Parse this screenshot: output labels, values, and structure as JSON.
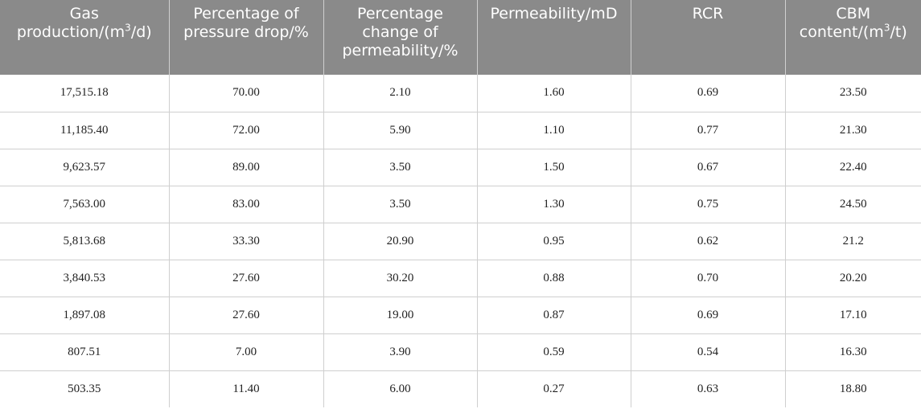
{
  "table": {
    "headers": {
      "gas_production": {
        "line1": "Gas",
        "line2_pre": "production/(m",
        "sup": "3",
        "line2_post": "/d)"
      },
      "pressure_drop": {
        "line1": "Percentage of",
        "line2": "pressure drop/%"
      },
      "permeability_change": {
        "line1": "Percentage",
        "line2": "change of",
        "line3": "permeability/%"
      },
      "permeability": {
        "line1": "Permeability/mD"
      },
      "rcr": {
        "line1": "RCR"
      },
      "cbm_content": {
        "line1": "CBM",
        "line2_pre": "content/(m",
        "sup": "3",
        "line2_post": "/t)"
      }
    },
    "rows": [
      [
        "17,515.18",
        "70.00",
        "2.10",
        "1.60",
        "0.69",
        "23.50"
      ],
      [
        "11,185.40",
        "72.00",
        "5.90",
        "1.10",
        "0.77",
        "21.30"
      ],
      [
        "9,623.57",
        "89.00",
        "3.50",
        "1.50",
        "0.67",
        "22.40"
      ],
      [
        "7,563.00",
        "83.00",
        "3.50",
        "1.30",
        "0.75",
        "24.50"
      ],
      [
        "5,813.68",
        "33.30",
        "20.90",
        "0.95",
        "0.62",
        "21.2"
      ],
      [
        "3,840.53",
        "27.60",
        "30.20",
        "0.88",
        "0.70",
        "20.20"
      ],
      [
        "1,897.08",
        "27.60",
        "19.00",
        "0.87",
        "0.69",
        "17.10"
      ],
      [
        "807.51",
        "7.00",
        "3.90",
        "0.59",
        "0.54",
        "16.30"
      ],
      [
        "503.35",
        "11.40",
        "6.00",
        "0.27",
        "0.63",
        "18.80"
      ]
    ]
  },
  "colors": {
    "header_background": "#8a8a8a",
    "header_text": "#ffffff",
    "grid_line": "#cfcfcf"
  }
}
